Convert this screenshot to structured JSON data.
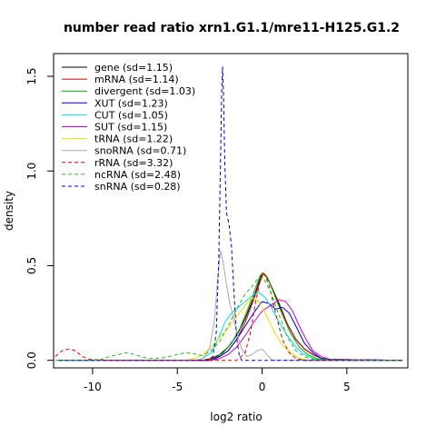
{
  "chart_data": {
    "type": "line",
    "title": "number read ratio xrn1.G1.1/mre11-H125.G1.2",
    "xlabel": "log2 ratio",
    "ylabel": "density",
    "xlim": [
      -12.3,
      8.6
    ],
    "ylim": [
      -0.04,
      1.62
    ],
    "xticks": [
      -10,
      -5,
      0,
      5
    ],
    "yticks": [
      0.0,
      0.5,
      1.0,
      1.5
    ],
    "xtick_labels": [
      "-10",
      "-5",
      "0",
      "5"
    ],
    "ytick_labels": [
      "0.0",
      "0.5",
      "1.0",
      "1.5"
    ],
    "legend_position": "top-left",
    "grid": false,
    "series": [
      {
        "name": "gene (sd=1.15)",
        "color": "#000000",
        "dash": "solid",
        "points": [
          [
            -12,
            0
          ],
          [
            -3.5,
            0
          ],
          [
            -3,
            0.01
          ],
          [
            -2.5,
            0.03
          ],
          [
            -2,
            0.07
          ],
          [
            -1.5,
            0.13
          ],
          [
            -1,
            0.22
          ],
          [
            -0.5,
            0.33
          ],
          [
            -0.2,
            0.41
          ],
          [
            0,
            0.46
          ],
          [
            0.2,
            0.45
          ],
          [
            0.5,
            0.4
          ],
          [
            1,
            0.3
          ],
          [
            1.5,
            0.19
          ],
          [
            2,
            0.11
          ],
          [
            2.5,
            0.06
          ],
          [
            3,
            0.03
          ],
          [
            3.5,
            0.01
          ],
          [
            4,
            0.005
          ],
          [
            8.3,
            0
          ]
        ]
      },
      {
        "name": "mRNA (sd=1.14)",
        "color": "#cc0000",
        "dash": "solid",
        "points": [
          [
            -12,
            0
          ],
          [
            -3.5,
            0
          ],
          [
            -3,
            0.01
          ],
          [
            -2.5,
            0.02
          ],
          [
            -2,
            0.05
          ],
          [
            -1.5,
            0.11
          ],
          [
            -1,
            0.2
          ],
          [
            -0.5,
            0.32
          ],
          [
            -0.1,
            0.42
          ],
          [
            0.1,
            0.46
          ],
          [
            0.3,
            0.44
          ],
          [
            0.6,
            0.38
          ],
          [
            1,
            0.29
          ],
          [
            1.5,
            0.19
          ],
          [
            2,
            0.11
          ],
          [
            2.5,
            0.06
          ],
          [
            3,
            0.03
          ],
          [
            3.5,
            0.01
          ],
          [
            4,
            0.005
          ],
          [
            8.3,
            0
          ]
        ]
      },
      {
        "name": "divergent (sd=1.03)",
        "color": "#00aa00",
        "dash": "solid",
        "points": [
          [
            -12,
            0
          ],
          [
            -3.2,
            0
          ],
          [
            -2.8,
            0.01
          ],
          [
            -2.3,
            0.04
          ],
          [
            -1.8,
            0.09
          ],
          [
            -1.3,
            0.17
          ],
          [
            -0.8,
            0.28
          ],
          [
            -0.4,
            0.38
          ],
          [
            -0.1,
            0.45
          ],
          [
            0.1,
            0.46
          ],
          [
            0.4,
            0.42
          ],
          [
            0.8,
            0.33
          ],
          [
            1.2,
            0.24
          ],
          [
            1.7,
            0.14
          ],
          [
            2.2,
            0.07
          ],
          [
            2.7,
            0.03
          ],
          [
            3.2,
            0.01
          ],
          [
            3.7,
            0
          ],
          [
            8.3,
            0
          ]
        ]
      },
      {
        "name": "XUT (sd=1.23)",
        "color": "#0000cc",
        "dash": "solid",
        "points": [
          [
            -12,
            0
          ],
          [
            -3,
            0
          ],
          [
            -2.5,
            0.02
          ],
          [
            -2,
            0.05
          ],
          [
            -1.5,
            0.11
          ],
          [
            -1,
            0.18
          ],
          [
            -0.5,
            0.25
          ],
          [
            0,
            0.31
          ],
          [
            0.4,
            0.3
          ],
          [
            0.8,
            0.27
          ],
          [
            1.2,
            0.28
          ],
          [
            1.6,
            0.25
          ],
          [
            2,
            0.18
          ],
          [
            2.5,
            0.09
          ],
          [
            3,
            0.04
          ],
          [
            3.5,
            0.01
          ],
          [
            4,
            0.005
          ],
          [
            8.3,
            0
          ]
        ]
      },
      {
        "name": "CUT (sd=1.05)",
        "color": "#00dddd",
        "dash": "solid",
        "points": [
          [
            -12,
            0
          ],
          [
            -4,
            0
          ],
          [
            -3.5,
            0.01
          ],
          [
            -3,
            0.04
          ],
          [
            -2.6,
            0.11
          ],
          [
            -2.2,
            0.2
          ],
          [
            -1.8,
            0.25
          ],
          [
            -1.4,
            0.28
          ],
          [
            -1,
            0.31
          ],
          [
            -0.6,
            0.34
          ],
          [
            -0.2,
            0.36
          ],
          [
            0.2,
            0.33
          ],
          [
            0.6,
            0.27
          ],
          [
            1,
            0.2
          ],
          [
            1.5,
            0.13
          ],
          [
            2,
            0.07
          ],
          [
            2.5,
            0.03
          ],
          [
            3,
            0.01
          ],
          [
            3.5,
            0
          ],
          [
            8.3,
            0
          ]
        ]
      },
      {
        "name": "SUT (sd=1.15)",
        "color": "#cc00cc",
        "dash": "solid",
        "points": [
          [
            -12,
            0
          ],
          [
            -3,
            0
          ],
          [
            -2.5,
            0.01
          ],
          [
            -2,
            0.03
          ],
          [
            -1.5,
            0.07
          ],
          [
            -1,
            0.13
          ],
          [
            -0.5,
            0.2
          ],
          [
            0,
            0.26
          ],
          [
            0.5,
            0.29
          ],
          [
            1,
            0.32
          ],
          [
            1.4,
            0.31
          ],
          [
            1.8,
            0.26
          ],
          [
            2.2,
            0.18
          ],
          [
            2.6,
            0.11
          ],
          [
            3,
            0.05
          ],
          [
            3.5,
            0.02
          ],
          [
            4,
            0.005
          ],
          [
            8.3,
            0
          ]
        ]
      },
      {
        "name": "tRNA (sd=1.22)",
        "color": "#eedd00",
        "dash": "solid",
        "points": [
          [
            -12,
            0
          ],
          [
            -4.5,
            0
          ],
          [
            -4,
            0.01
          ],
          [
            -3.5,
            0.03
          ],
          [
            -3,
            0.07
          ],
          [
            -2.5,
            0.12
          ],
          [
            -2,
            0.17
          ],
          [
            -1.5,
            0.23
          ],
          [
            -1,
            0.29
          ],
          [
            -0.6,
            0.33
          ],
          [
            -0.3,
            0.32
          ],
          [
            0,
            0.28
          ],
          [
            0.4,
            0.21
          ],
          [
            0.8,
            0.14
          ],
          [
            1.2,
            0.08
          ],
          [
            1.7,
            0.04
          ],
          [
            2.2,
            0.01
          ],
          [
            2.7,
            0
          ],
          [
            8.3,
            0
          ]
        ]
      },
      {
        "name": "snoRNA (sd=0.71)",
        "color": "#aaaaaa",
        "dash": "solid",
        "points": [
          [
            -12,
            0
          ],
          [
            -4,
            0
          ],
          [
            -3.5,
            0.01
          ],
          [
            -3.1,
            0.06
          ],
          [
            -2.8,
            0.22
          ],
          [
            -2.6,
            0.45
          ],
          [
            -2.45,
            0.58
          ],
          [
            -2.3,
            0.52
          ],
          [
            -2.1,
            0.4
          ],
          [
            -1.9,
            0.3
          ],
          [
            -1.7,
            0.23
          ],
          [
            -1.5,
            0.15
          ],
          [
            -1.2,
            0.06
          ],
          [
            -0.9,
            0.02
          ],
          [
            -0.6,
            0.03
          ],
          [
            -0.3,
            0.05
          ],
          [
            0,
            0.06
          ],
          [
            0.3,
            0.03
          ],
          [
            0.6,
            0
          ],
          [
            8.3,
            0
          ]
        ]
      },
      {
        "name": "rRNA (sd=3.32)",
        "color": "#dd0000",
        "dash": "dashed",
        "points": [
          [
            -12.2,
            0.02
          ],
          [
            -11.8,
            0.05
          ],
          [
            -11.4,
            0.06
          ],
          [
            -11,
            0.05
          ],
          [
            -10.6,
            0.02
          ],
          [
            -10.2,
            0.005
          ],
          [
            -9,
            0
          ],
          [
            -1.5,
            0
          ],
          [
            -1,
            0.04
          ],
          [
            -0.7,
            0.14
          ],
          [
            -0.4,
            0.3
          ],
          [
            -0.1,
            0.43
          ],
          [
            0.1,
            0.46
          ],
          [
            0.4,
            0.4
          ],
          [
            0.8,
            0.25
          ],
          [
            1.2,
            0.11
          ],
          [
            1.6,
            0.04
          ],
          [
            2,
            0.01
          ],
          [
            2.5,
            0
          ],
          [
            8.3,
            0
          ]
        ]
      },
      {
        "name": "ncRNA (sd=2.48)",
        "color": "#22bb22",
        "dash": "dashed",
        "points": [
          [
            -12.2,
            0
          ],
          [
            -10,
            0
          ],
          [
            -9.5,
            0.005
          ],
          [
            -9,
            0.02
          ],
          [
            -8.5,
            0.03
          ],
          [
            -8,
            0.04
          ],
          [
            -7.5,
            0.03
          ],
          [
            -7,
            0.015
          ],
          [
            -6.5,
            0.01
          ],
          [
            -6,
            0.01
          ],
          [
            -5.5,
            0.02
          ],
          [
            -5,
            0.03
          ],
          [
            -4.5,
            0.04
          ],
          [
            -4,
            0.035
          ],
          [
            -3.5,
            0.025
          ],
          [
            -3,
            0.05
          ],
          [
            -2.5,
            0.1
          ],
          [
            -2,
            0.18
          ],
          [
            -1.5,
            0.27
          ],
          [
            -1,
            0.35
          ],
          [
            -0.5,
            0.4
          ],
          [
            -0.2,
            0.44
          ],
          [
            0.1,
            0.43
          ],
          [
            0.5,
            0.36
          ],
          [
            1,
            0.24
          ],
          [
            1.5,
            0.12
          ],
          [
            2,
            0.05
          ],
          [
            2.5,
            0.02
          ],
          [
            3,
            0.005
          ],
          [
            8.3,
            0
          ]
        ]
      },
      {
        "name": "snRNA (sd=0.28)",
        "color": "#0000cc",
        "dash": "dashed",
        "points": [
          [
            -12,
            0
          ],
          [
            -3.2,
            0
          ],
          [
            -2.9,
            0.02
          ],
          [
            -2.7,
            0.15
          ],
          [
            -2.55,
            0.55
          ],
          [
            -2.45,
            1.05
          ],
          [
            -2.38,
            1.42
          ],
          [
            -2.33,
            1.55
          ],
          [
            -2.28,
            1.42
          ],
          [
            -2.2,
            1.05
          ],
          [
            -2.1,
            0.78
          ],
          [
            -1.95,
            0.72
          ],
          [
            -1.8,
            0.6
          ],
          [
            -1.65,
            0.35
          ],
          [
            -1.5,
            0.12
          ],
          [
            -1.35,
            0.03
          ],
          [
            -1.2,
            0
          ],
          [
            8.3,
            0
          ]
        ]
      }
    ]
  }
}
